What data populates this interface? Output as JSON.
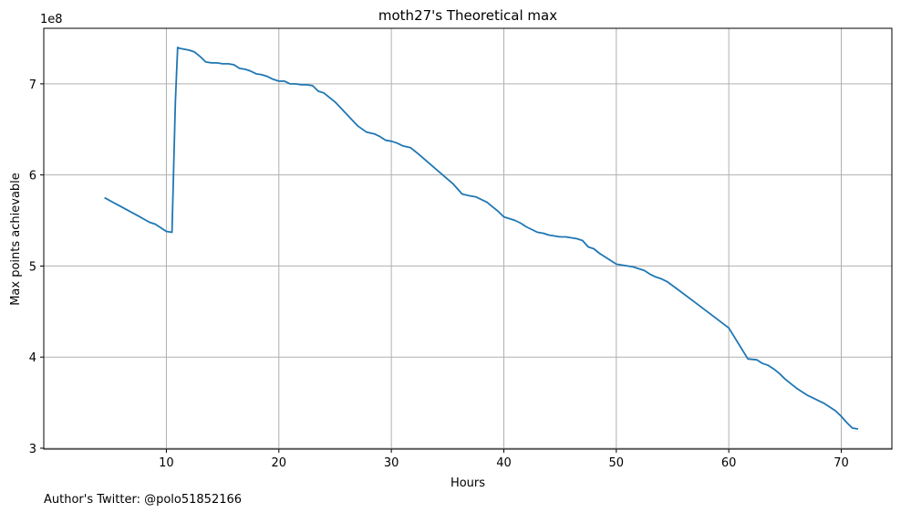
{
  "chart_data": {
    "type": "line",
    "title": "moth27's Theoretical max",
    "xlabel": "Hours",
    "ylabel": "Max points achievable",
    "y_multiplier_label": "1e8",
    "xlim": [
      -0.9,
      74.5
    ],
    "ylim": [
      2.99,
      7.61
    ],
    "x_ticks": [
      10,
      20,
      30,
      40,
      50,
      60,
      70
    ],
    "x_tick_labels": [
      "10",
      "20",
      "30",
      "40",
      "50",
      "60",
      "70"
    ],
    "y_ticks": [
      3,
      4,
      5,
      6,
      7
    ],
    "y_tick_labels": [
      "3",
      "4",
      "5",
      "6",
      "7"
    ],
    "grid": true,
    "line_color": "#1f77b4",
    "series": [
      {
        "x": [
          4.5,
          6.0,
          7.5,
          8.5,
          9.0,
          9.5,
          10.0,
          10.5,
          10.8,
          11.0,
          11.2,
          12.0,
          12.5,
          13.0,
          13.5,
          14.0,
          14.5,
          15.0,
          15.5,
          16.0,
          16.5,
          17.0,
          17.5,
          18.0,
          18.5,
          19.0,
          19.5,
          20.0,
          20.5,
          21.0,
          21.5,
          22.0,
          22.5,
          23.0,
          23.5,
          24.0,
          25.0,
          26.0,
          27.0,
          27.8,
          28.5,
          29.0,
          29.5,
          30.0,
          30.5,
          31.0,
          31.7,
          32.5,
          34.0,
          35.5,
          36.3,
          37.0,
          37.5,
          38.0,
          38.5,
          39.0,
          39.5,
          40.0,
          40.5,
          41.0,
          41.5,
          42.0,
          42.5,
          43.0,
          43.5,
          44.0,
          44.5,
          45.0,
          45.5,
          46.0,
          46.5,
          47.0,
          47.5,
          48.0,
          48.5,
          49.0,
          49.5,
          50.0,
          50.5,
          51.0,
          51.5,
          52.0,
          52.5,
          53.0,
          53.5,
          54.0,
          54.5,
          55.5,
          57.0,
          58.5,
          60.0,
          61.7,
          62.5,
          63.0,
          63.5,
          64.0,
          64.5,
          65.0,
          65.5,
          66.0,
          66.5,
          67.0,
          67.5,
          68.0,
          68.5,
          69.0,
          69.5,
          70.0,
          70.5,
          71.0,
          71.5
        ],
        "y": [
          5.75,
          5.65,
          5.55,
          5.48,
          5.46,
          5.42,
          5.38,
          5.37,
          6.8,
          7.4,
          7.39,
          7.37,
          7.35,
          7.3,
          7.24,
          7.23,
          7.23,
          7.22,
          7.22,
          7.21,
          7.17,
          7.16,
          7.14,
          7.11,
          7.1,
          7.08,
          7.05,
          7.03,
          7.03,
          7.0,
          7.0,
          6.99,
          6.99,
          6.98,
          6.92,
          6.9,
          6.8,
          6.67,
          6.54,
          6.47,
          6.45,
          6.42,
          6.38,
          6.37,
          6.35,
          6.32,
          6.3,
          6.22,
          6.06,
          5.9,
          5.79,
          5.77,
          5.76,
          5.73,
          5.7,
          5.65,
          5.6,
          5.54,
          5.52,
          5.5,
          5.47,
          5.43,
          5.4,
          5.37,
          5.36,
          5.34,
          5.33,
          5.32,
          5.32,
          5.31,
          5.3,
          5.28,
          5.21,
          5.19,
          5.14,
          5.1,
          5.06,
          5.02,
          5.01,
          5.0,
          4.99,
          4.97,
          4.95,
          4.91,
          4.88,
          4.86,
          4.83,
          4.74,
          4.6,
          4.46,
          4.32,
          3.98,
          3.97,
          3.93,
          3.91,
          3.87,
          3.82,
          3.76,
          3.71,
          3.66,
          3.62,
          3.58,
          3.55,
          3.52,
          3.49,
          3.45,
          3.41,
          3.35,
          3.28,
          3.22,
          3.21
        ]
      }
    ]
  },
  "footnote": "Author's Twitter: @polo51852166"
}
